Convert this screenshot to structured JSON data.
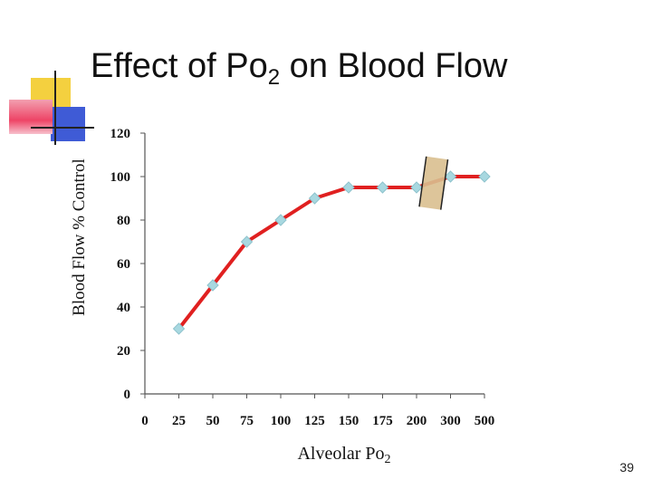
{
  "title": {
    "main": "Effect of Po",
    "sub": "2",
    "rest": " on Blood Flow"
  },
  "colors": {
    "line": "#e02020",
    "marker": "#a8d8e0",
    "deco_yellow": "#f4d03f",
    "deco_blue": "#3f5bd6",
    "deco_red": "#ee4466",
    "break_mark": "#d9bf8f"
  },
  "chart_data": {
    "type": "line",
    "title": "Effect of Po2 on Blood Flow",
    "xlabel": "Alveolar Po2",
    "ylabel": "Blood Flow % Control",
    "categories": [
      "0",
      "25",
      "50",
      "75",
      "100",
      "125",
      "150",
      "175",
      "200",
      "300",
      "500"
    ],
    "series": [
      {
        "values": [
          null,
          30,
          50,
          70,
          80,
          90,
          95,
          95,
          95,
          100,
          100
        ]
      }
    ],
    "yticks": [
      "0",
      "20",
      "40",
      "60",
      "80",
      "100",
      "120"
    ],
    "ylim": [
      0,
      120
    ],
    "grid": false,
    "legend": "none",
    "axis_break": "between 200 and 300"
  },
  "xlabel": {
    "main": "Alveolar Po",
    "sub": "2"
  },
  "page_number": "39"
}
